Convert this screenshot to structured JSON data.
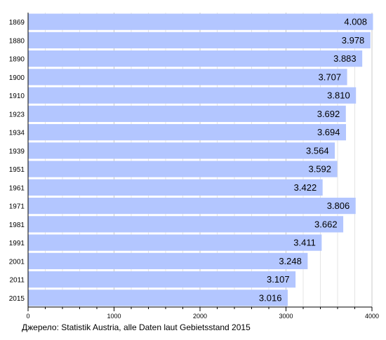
{
  "chart_data": {
    "type": "bar",
    "orientation": "horizontal",
    "categories": [
      "1869",
      "1880",
      "1890",
      "1900",
      "1910",
      "1923",
      "1934",
      "1939",
      "1951",
      "1961",
      "1971",
      "1981",
      "1991",
      "2001",
      "2011",
      "2015"
    ],
    "values": [
      4008,
      3978,
      3883,
      3707,
      3810,
      3692,
      3694,
      3564,
      3592,
      3422,
      3806,
      3662,
      3411,
      3248,
      3107,
      3016
    ],
    "value_labels": [
      "4.008",
      "3.978",
      "3.883",
      "3.707",
      "3.810",
      "3.692",
      "3.694",
      "3.564",
      "3.592",
      "3.422",
      "3.806",
      "3.662",
      "3.411",
      "3.248",
      "3.107",
      "3.016"
    ],
    "xlim": [
      0,
      4000
    ],
    "xticks": [
      0,
      1000,
      2000,
      3000,
      4000
    ],
    "xtick_labels": [
      "0",
      "1000",
      "2000",
      "3000",
      "4000"
    ],
    "grid": "vertical",
    "bar_color": "#b3c6ff",
    "title": "",
    "xlabel": "",
    "ylabel": ""
  },
  "source_note": "Джерело: Statistik Austria, alle Daten laut Gebietsstand 2015"
}
